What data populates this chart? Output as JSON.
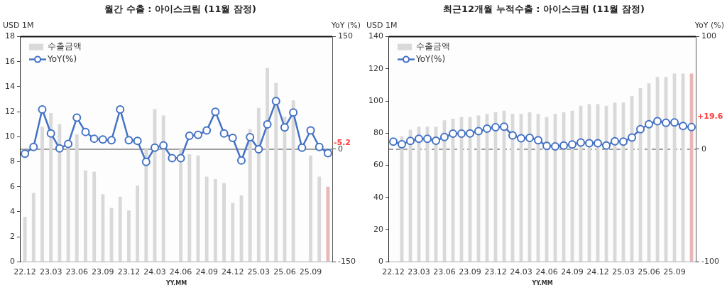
{
  "chart_data": [
    {
      "type": "bar",
      "title": "월간 수출 : 아이스크림 (11월 잠정)",
      "xlabel": "YY.MM",
      "ylabel": "USD 1M",
      "y2label": "YoY (%)",
      "categories": [
        "22.12",
        null,
        null,
        "23.03",
        null,
        null,
        "23.06",
        null,
        null,
        "23.09",
        null,
        null,
        "23.12",
        null,
        null,
        "24.03",
        null,
        null,
        "24.06",
        null,
        null,
        "24.09",
        null,
        null,
        "24.12",
        null,
        null,
        "25.03",
        null,
        null,
        "25.06",
        null,
        null,
        "25.09",
        null,
        null
      ],
      "series": [
        {
          "name": "수출금액",
          "color": "#d9d9d9",
          "colors": [
            "#d9d9d9",
            "#d9d9d9",
            "#d9d9d9",
            "#d9d9d9",
            "#d9d9d9",
            "#d9d9d9",
            "#d9d9d9",
            "#d9d9d9",
            "#d9d9d9",
            "#d9d9d9",
            "#d9d9d9",
            "#d9d9d9",
            "#d9d9d9",
            "#d9d9d9",
            "#d9d9d9",
            "#d9d9d9",
            "#d9d9d9",
            "#d9d9d9",
            "#d9d9d9",
            "#d9d9d9",
            "#d9d9d9",
            "#d9d9d9",
            "#d9d9d9",
            "#d9d9d9",
            "#d9d9d9",
            "#d9d9d9",
            "#d9d9d9",
            "#d9d9d9",
            "#d9d9d9",
            "#d9d9d9",
            "#d9d9d9",
            "#d9d9d9",
            "#d9d9d9",
            "#d9d9d9",
            "#d9d9d9",
            "#e6b8b7"
          ],
          "values": [
            3.6,
            5.5,
            10.8,
            11.9,
            11.0,
            9.0,
            10.2,
            7.3,
            7.2,
            5.4,
            4.3,
            5.2,
            4.1,
            6.1,
            9.0,
            12.2,
            11.7,
            null,
            9.0,
            8.6,
            8.5,
            6.8,
            6.6,
            6.3,
            4.7,
            5.3,
            10.6,
            12.3,
            15.5,
            14.3,
            11.6,
            12.9,
            null,
            8.5,
            6.8,
            6.0
          ]
        },
        {
          "type": "line",
          "name": "YoY(%)",
          "color": "#4472c4",
          "axis": "y2",
          "marker": "circle",
          "values": [
            -6,
            3,
            53,
            21,
            1,
            7,
            42,
            23,
            14,
            13,
            12,
            53,
            12,
            11,
            -17,
            2,
            5,
            -12,
            -12,
            18,
            19,
            25,
            50,
            21,
            15,
            -15,
            16,
            0,
            33,
            64,
            29,
            49,
            2,
            25,
            3,
            -5.2
          ],
          "value_labels": [
            null,
            null,
            null,
            null,
            null,
            null,
            null,
            null,
            null,
            null,
            null,
            null,
            null,
            null,
            null,
            null,
            null,
            null,
            null,
            null,
            null,
            null,
            null,
            null,
            null,
            null,
            null,
            null,
            null,
            null,
            null,
            null,
            null,
            null,
            null,
            "-5.2"
          ]
        }
      ],
      "ylim": [
        0,
        18
      ],
      "yticks": [
        0,
        2,
        4,
        6,
        8,
        10,
        12,
        14,
        16,
        18
      ],
      "y2lim": [
        -150,
        150
      ],
      "y2ticks": [
        -150,
        0,
        150
      ],
      "ref_lines": [
        {
          "axis": "y2",
          "value": 0,
          "color": "#808080",
          "line_style": "solid"
        }
      ],
      "legend": "top left"
    },
    {
      "type": "bar",
      "title": "최근12개월 누적수출 : 아이스크림 (11월 잠정)",
      "xlabel": "YY.MM",
      "ylabel": "USD 1M",
      "y2label": "YoY (%)",
      "categories": [
        "22.12",
        null,
        null,
        "23.03",
        null,
        null,
        "23.06",
        null,
        null,
        "23.09",
        null,
        null,
        "23.12",
        null,
        null,
        "24.03",
        null,
        null,
        "24.06",
        null,
        null,
        "24.09",
        null,
        null,
        "24.12",
        null,
        null,
        "25.03",
        null,
        null,
        "25.06",
        null,
        null,
        "25.09",
        null,
        null
      ],
      "series": [
        {
          "name": "수출금액",
          "color": "#d9d9d9",
          "colors": [
            "#d9d9d9",
            "#d9d9d9",
            "#d9d9d9",
            "#d9d9d9",
            "#d9d9d9",
            "#d9d9d9",
            "#d9d9d9",
            "#d9d9d9",
            "#d9d9d9",
            "#d9d9d9",
            "#d9d9d9",
            "#d9d9d9",
            "#d9d9d9",
            "#d9d9d9",
            "#d9d9d9",
            "#d9d9d9",
            "#d9d9d9",
            "#d9d9d9",
            "#d9d9d9",
            "#d9d9d9",
            "#d9d9d9",
            "#d9d9d9",
            "#d9d9d9",
            "#d9d9d9",
            "#d9d9d9",
            "#d9d9d9",
            "#d9d9d9",
            "#d9d9d9",
            "#d9d9d9",
            "#d9d9d9",
            "#d9d9d9",
            "#d9d9d9",
            "#d9d9d9",
            "#d9d9d9",
            "#d9d9d9",
            "#e6b8b7"
          ],
          "values": [
            null,
            78,
            82,
            84,
            84,
            84,
            88,
            89,
            90,
            90,
            91,
            92,
            93,
            94,
            92,
            92,
            93,
            92,
            90,
            92,
            93,
            94,
            97,
            98,
            98,
            97,
            99,
            99,
            103,
            108,
            111,
            115,
            115,
            117,
            117,
            117
          ]
        },
        {
          "type": "line",
          "name": "YoY(%)",
          "color": "#4472c4",
          "axis": "y2",
          "marker": "circle",
          "values": [
            6.7,
            4.4,
            7.3,
            9.3,
            9.3,
            7.5,
            10.9,
            13.8,
            13.8,
            14,
            16,
            18.2,
            19.5,
            20,
            12.2,
            9.8,
            10,
            8,
            2.9,
            2.4,
            3.3,
            4.2,
            6,
            5.3,
            5.3,
            3.3,
            7.1,
            6.7,
            10.4,
            17.8,
            22.2,
            24.9,
            23.5,
            23.8,
            20.6,
            19.6
          ],
          "value_labels": [
            null,
            null,
            null,
            null,
            null,
            null,
            null,
            null,
            null,
            null,
            null,
            null,
            null,
            null,
            null,
            null,
            null,
            null,
            null,
            null,
            null,
            null,
            null,
            null,
            null,
            null,
            null,
            null,
            null,
            null,
            null,
            null,
            null,
            null,
            null,
            "+19.6"
          ]
        }
      ],
      "ylim": [
        0,
        140
      ],
      "yticks": [
        0,
        20,
        40,
        60,
        80,
        100,
        120,
        140
      ],
      "y2lim": [
        -100,
        100
      ],
      "y2ticks": [
        -100,
        0,
        100
      ],
      "ref_lines": [
        {
          "axis": "y2",
          "value": 0,
          "color": "#808080",
          "line_style": "dashed"
        }
      ],
      "legend": "top left"
    }
  ]
}
